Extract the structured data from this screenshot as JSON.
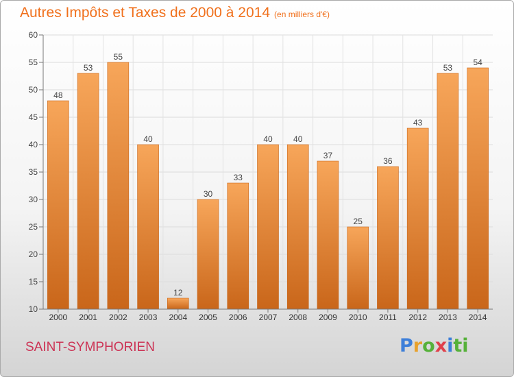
{
  "chart_data": {
    "type": "bar",
    "title": "Autres Impôts et Taxes de 2000 à 2014",
    "title_unit": "(en milliers d'€)",
    "categories": [
      "2000",
      "2001",
      "2002",
      "2003",
      "2004",
      "2005",
      "2006",
      "2007",
      "2008",
      "2009",
      "2010",
      "2011",
      "2012",
      "2013",
      "2014"
    ],
    "values": [
      48,
      53,
      55,
      40,
      12,
      30,
      33,
      40,
      40,
      37,
      25,
      36,
      43,
      53,
      54
    ],
    "ylim": [
      10,
      60
    ],
    "yticks": [
      10,
      15,
      20,
      25,
      30,
      35,
      40,
      45,
      50,
      55,
      60
    ],
    "grid": true,
    "bar_color_top": "#f7a65a",
    "bar_color_bottom": "#c9661a",
    "xlabel": "",
    "ylabel": ""
  },
  "footer": {
    "city": "SAINT-SYMPHORIEN",
    "logo": [
      "P",
      "r",
      "o",
      "x",
      "i",
      "ti"
    ]
  }
}
